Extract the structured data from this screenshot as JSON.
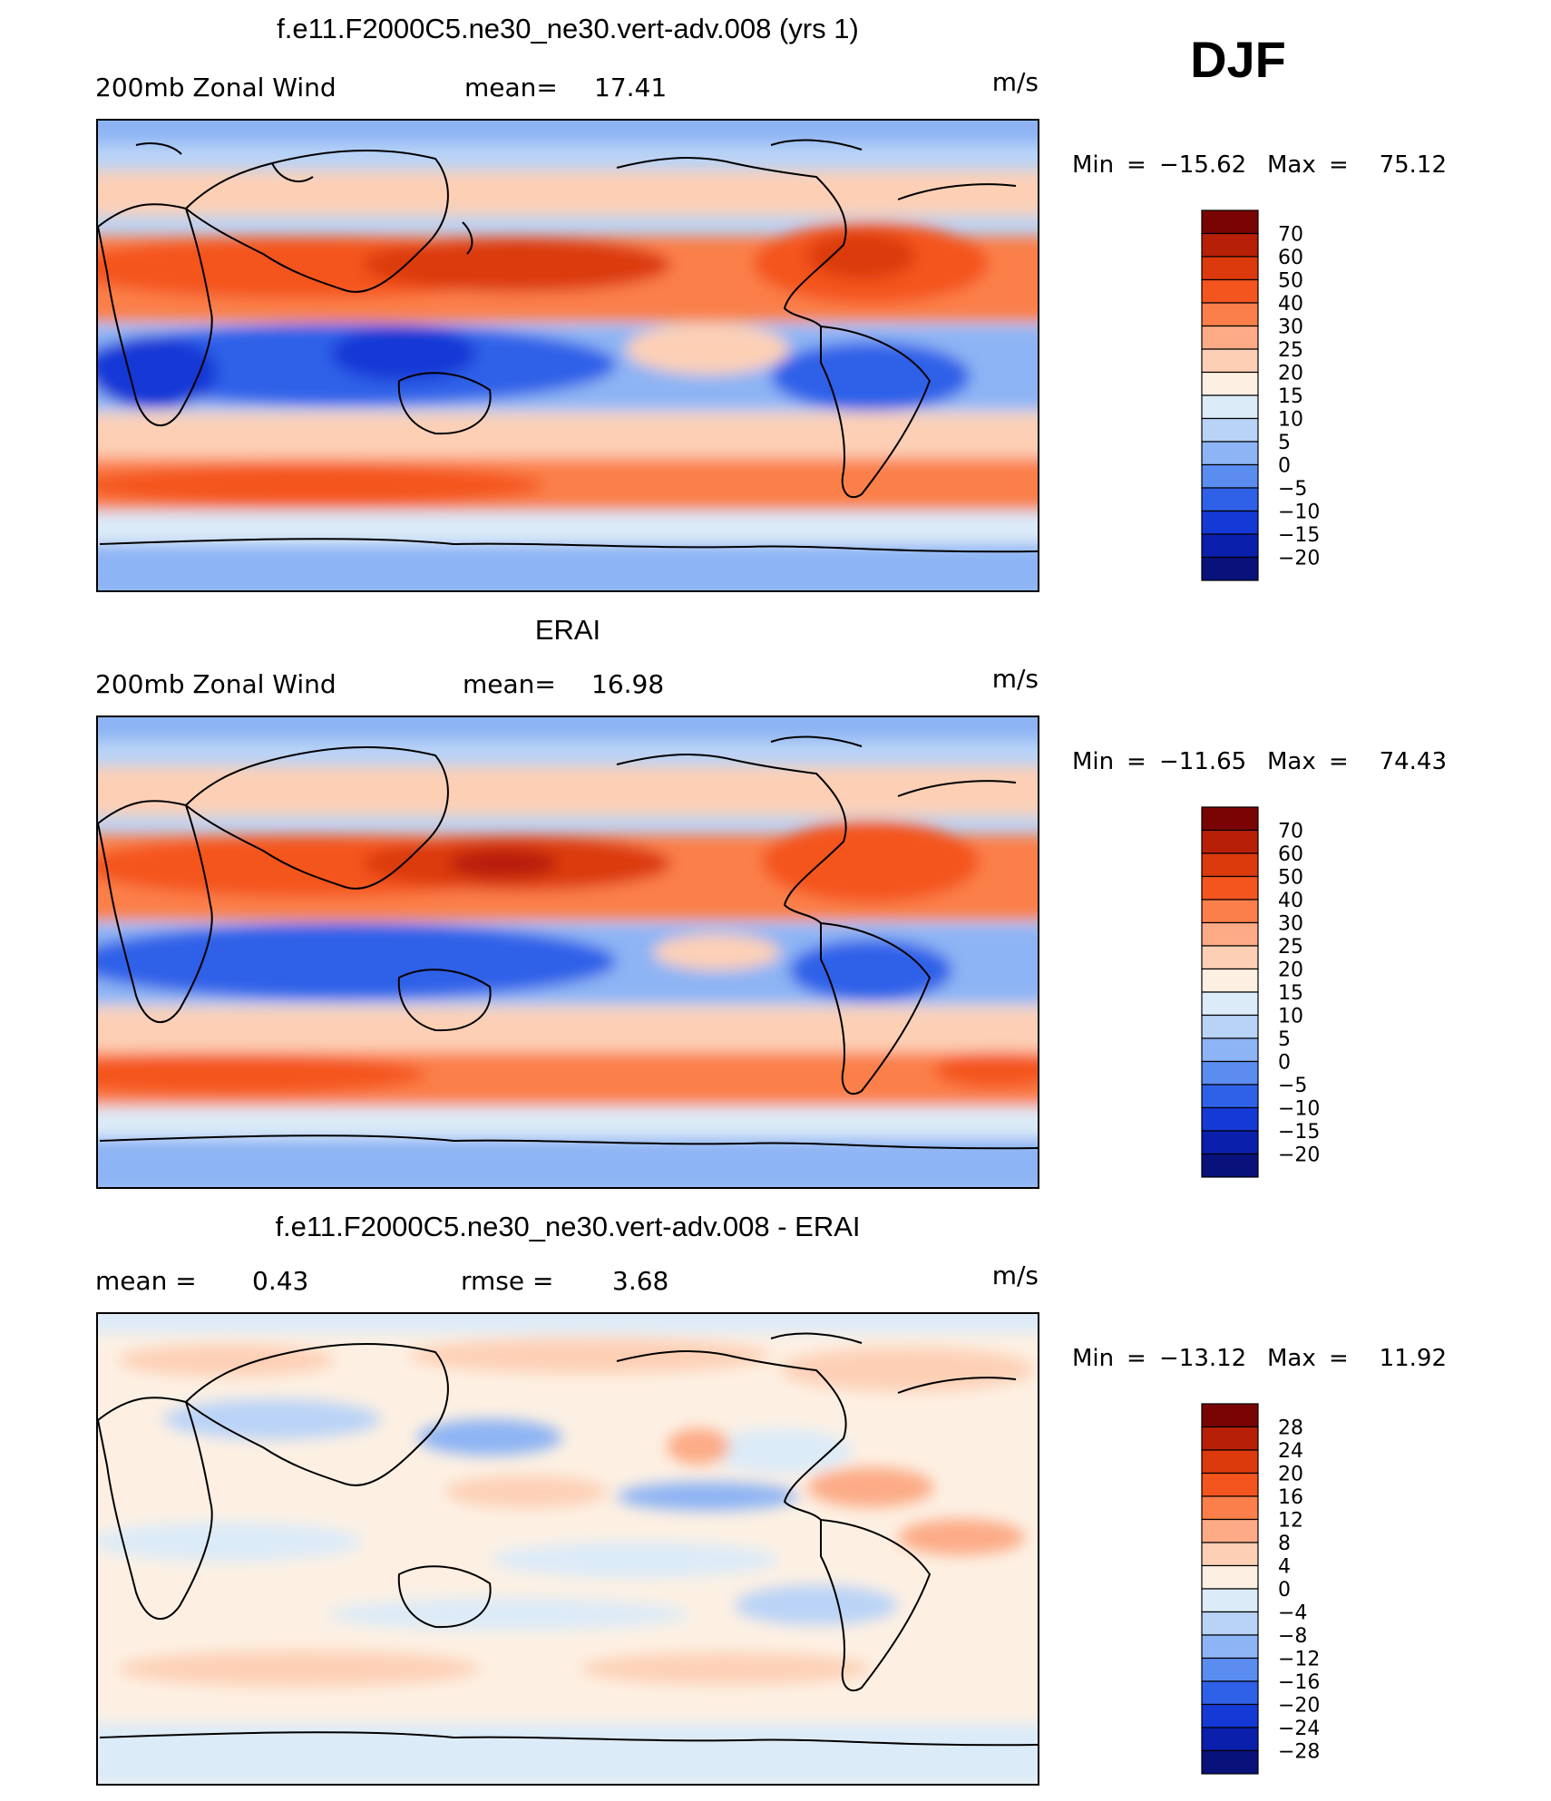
{
  "season": "DJF",
  "panels": [
    {
      "title": "f.e11.F2000C5.ne30_ne30.vert-adv.008 (yrs 1)",
      "left_label": "200mb Zonal Wind",
      "stat1_label": "mean=",
      "stat1_value": "17.41",
      "stat2_label": "",
      "stat2_value": "",
      "units": "m/s",
      "min_label": "Min",
      "min_value": "−15.62",
      "max_label": "Max",
      "max_value": "75.12",
      "colorbar_labels": [
        "70",
        "60",
        "50",
        "40",
        "30",
        "25",
        "20",
        "15",
        "10",
        "5",
        "0",
        "−5",
        "−10",
        "−15",
        "−20"
      ]
    },
    {
      "title": "ERAI",
      "left_label": "200mb Zonal Wind",
      "stat1_label": "mean=",
      "stat1_value": "16.98",
      "stat2_label": "",
      "stat2_value": "",
      "units": "m/s",
      "min_label": "Min",
      "min_value": "−11.65",
      "max_label": "Max",
      "max_value": "74.43",
      "colorbar_labels": [
        "70",
        "60",
        "50",
        "40",
        "30",
        "25",
        "20",
        "15",
        "10",
        "5",
        "0",
        "−5",
        "−10",
        "−15",
        "−20"
      ]
    },
    {
      "title": "f.e11.F2000C5.ne30_ne30.vert-adv.008 - ERAI",
      "left_label": "",
      "stat1_label": "mean =",
      "stat1_value": "0.43",
      "stat2_label": "rmse =",
      "stat2_value": "3.68",
      "units": "m/s",
      "min_label": "Min",
      "min_value": "−13.12",
      "max_label": "Max",
      "max_value": "11.92",
      "colorbar_labels": [
        "28",
        "24",
        "20",
        "16",
        "12",
        "8",
        "4",
        "0",
        "−4",
        "−8",
        "−12",
        "−16",
        "−20",
        "−24",
        "−28"
      ]
    }
  ],
  "palette": [
    "#7a0403",
    "#b81f07",
    "#dc3a0c",
    "#f4541d",
    "#fb7f4a",
    "#fcab86",
    "#fdd0b6",
    "#fdf0e3",
    "#dcebf8",
    "#b9d3f7",
    "#8db4f4",
    "#5b8cf0",
    "#2f61e8",
    "#1539d6",
    "#0a1fab",
    "#08127a"
  ],
  "icons": {
    "map": "world-map",
    "colorbar": "color-scale"
  },
  "chart_data": {
    "type": "heatmap",
    "variable": "200mb Zonal Wind",
    "units": "m/s",
    "season": "DJF",
    "maps": [
      {
        "name": "f.e11.F2000C5.ne30_ne30.vert-adv.008 (yrs 1)",
        "mean": 17.41,
        "min": -15.62,
        "max": 75.12,
        "levels": [
          -20,
          -15,
          -10,
          -5,
          0,
          5,
          10,
          15,
          20,
          25,
          30,
          40,
          50,
          60,
          70
        ]
      },
      {
        "name": "ERAI",
        "mean": 16.98,
        "min": -11.65,
        "max": 74.43,
        "levels": [
          -20,
          -15,
          -10,
          -5,
          0,
          5,
          10,
          15,
          20,
          25,
          30,
          40,
          50,
          60,
          70
        ]
      },
      {
        "name": "f.e11.F2000C5.ne30_ne30.vert-adv.008 - ERAI",
        "mean": 0.43,
        "rmse": 3.68,
        "min": -13.12,
        "max": 11.92,
        "levels": [
          -28,
          -24,
          -20,
          -16,
          -12,
          -8,
          -4,
          0,
          4,
          8,
          12,
          16,
          20,
          24,
          28
        ]
      }
    ]
  }
}
